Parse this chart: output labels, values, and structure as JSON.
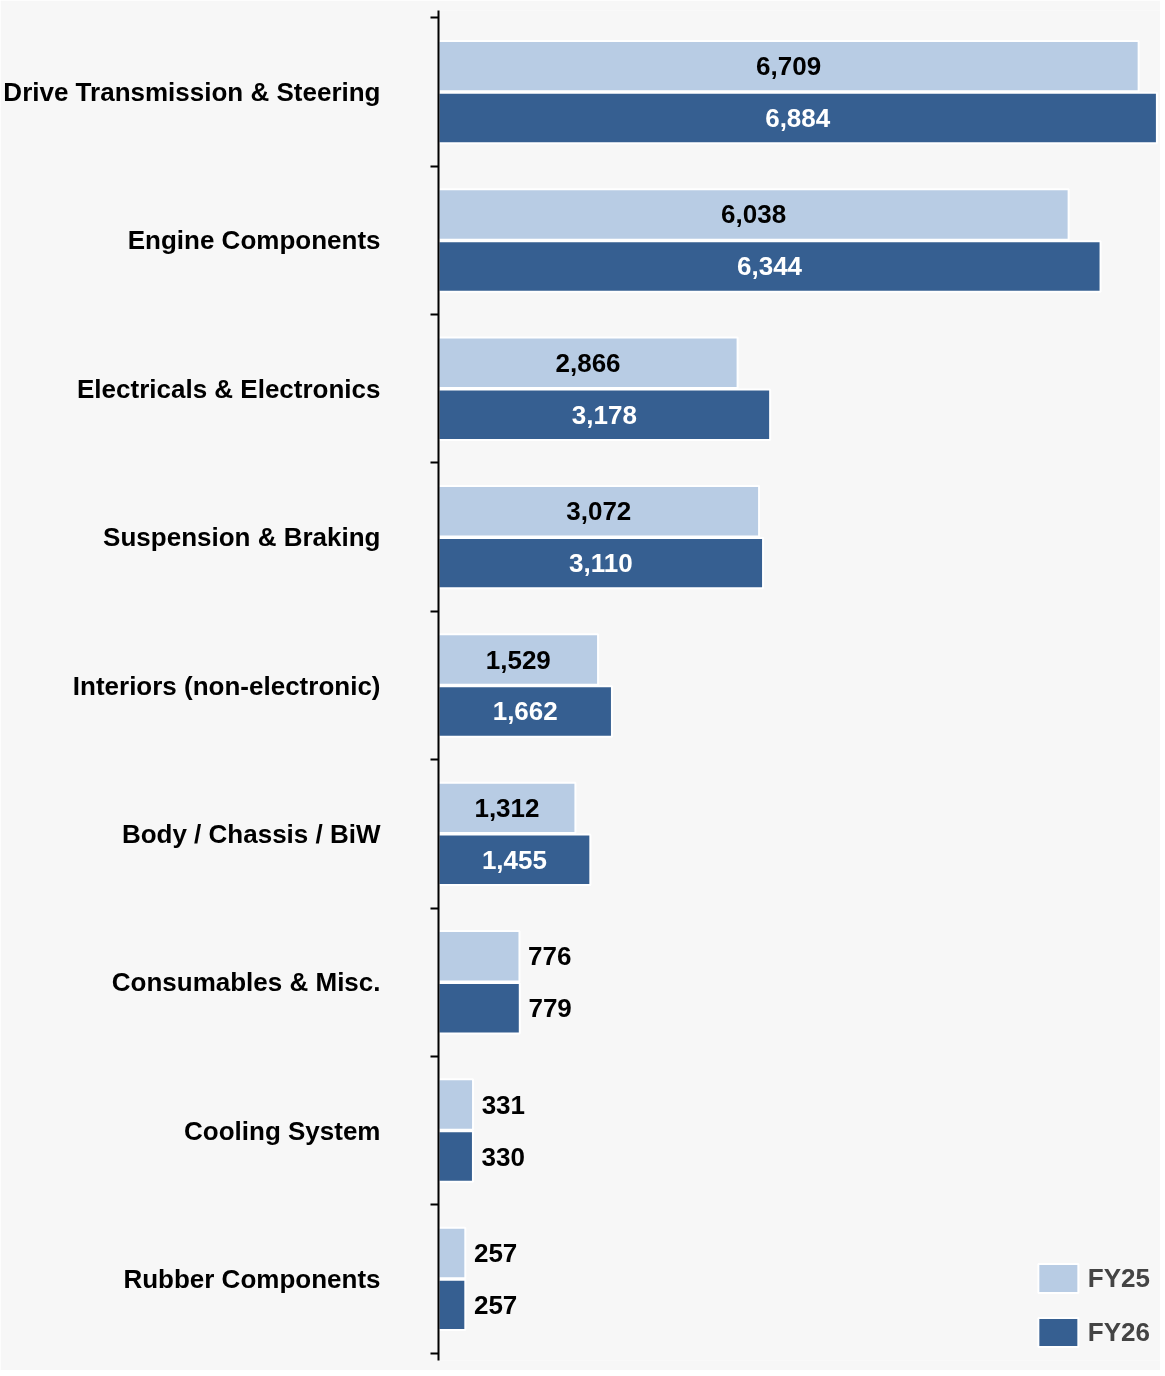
{
  "chart_data": {
    "type": "bar",
    "orientation": "horizontal",
    "categories": [
      "Drive Transmission & Steering",
      "Engine Components",
      "Electricals & Electronics",
      "Suspension & Braking",
      "Interiors (non-electronic)",
      "Body / Chassis / BiW",
      "Consumables & Misc.",
      "Cooling System",
      "Rubber Components"
    ],
    "series": [
      {
        "name": "FY25",
        "color": "#b8cce4",
        "values": [
          6709,
          6038,
          2866,
          3072,
          1529,
          1312,
          776,
          331,
          257
        ],
        "value_labels": [
          "6,709",
          "6,038",
          "2,866",
          "3,072",
          "1,529",
          "1,312",
          "776",
          "331",
          "257"
        ]
      },
      {
        "name": "FY26",
        "color": "#365f91",
        "values": [
          6884,
          6344,
          3178,
          3110,
          1662,
          1455,
          779,
          330,
          257
        ],
        "value_labels": [
          "6,884",
          "6,344",
          "3,178",
          "3,110",
          "1,662",
          "1,455",
          "779",
          "330",
          "257"
        ]
      }
    ],
    "legend": "bottom right",
    "grid": false,
    "tick_labels": "y"
  }
}
